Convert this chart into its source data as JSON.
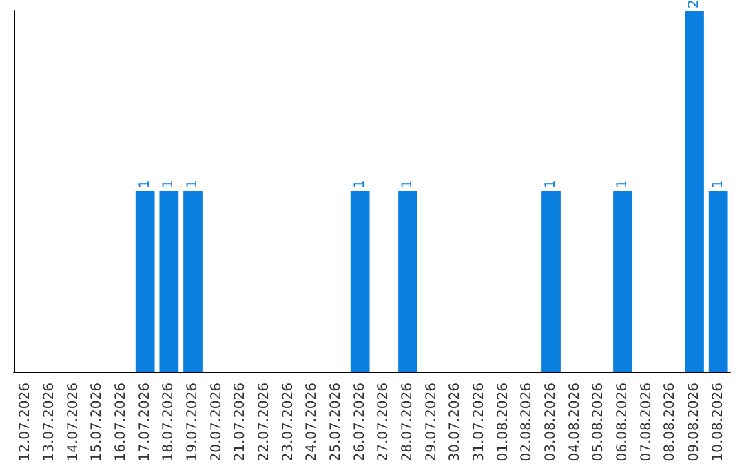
{
  "chart_data": {
    "type": "bar",
    "categories": [
      "12.07.2026",
      "13.07.2026",
      "14.07.2026",
      "15.07.2026",
      "16.07.2026",
      "17.07.2026",
      "18.07.2026",
      "19.07.2026",
      "20.07.2026",
      "21.07.2026",
      "22.07.2026",
      "23.07.2026",
      "24.07.2026",
      "25.07.2026",
      "26.07.2026",
      "27.07.2026",
      "28.07.2026",
      "29.07.2026",
      "30.07.2026",
      "31.07.2026",
      "01.08.2026",
      "02.08.2026",
      "03.08.2026",
      "04.08.2026",
      "05.08.2026",
      "06.08.2026",
      "07.08.2026",
      "08.08.2026",
      "09.08.2026",
      "10.08.2026"
    ],
    "values": [
      0,
      0,
      0,
      0,
      0,
      1,
      1,
      1,
      0,
      0,
      0,
      0,
      0,
      0,
      1,
      0,
      1,
      0,
      0,
      0,
      0,
      0,
      1,
      0,
      0,
      1,
      0,
      0,
      2,
      1
    ],
    "value_labels": [
      null,
      null,
      null,
      null,
      null,
      "1",
      "1",
      "1",
      null,
      null,
      null,
      null,
      null,
      null,
      "1",
      null,
      "1",
      null,
      null,
      null,
      null,
      null,
      "1",
      null,
      null,
      "1",
      null,
      null,
      "2",
      "1"
    ],
    "color": "#0a7fe0",
    "grid": false,
    "tick_labels": "x"
  }
}
